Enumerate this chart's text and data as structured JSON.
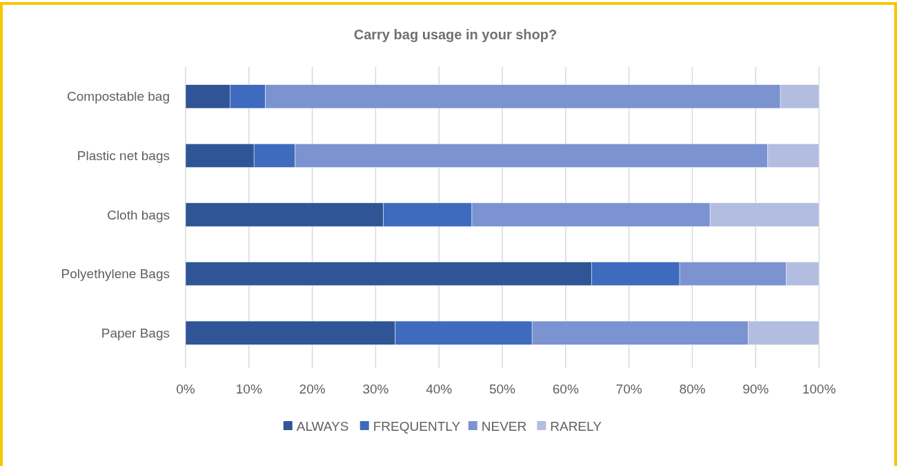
{
  "chart_data": {
    "type": "bar",
    "title": "Carry bag usage in your shop?",
    "orientation": "horizontal",
    "stacked": true,
    "categories": [
      "Compostable bag",
      "Plastic net bags",
      "Cloth bags",
      "Polyethylene Bags",
      "Paper Bags"
    ],
    "series": [
      {
        "name": "ALWAYS",
        "color": "#2f5597",
        "values": [
          7.0,
          10.8,
          31.2,
          64.1,
          33.1
        ]
      },
      {
        "name": "FREQUENTLY",
        "color": "#3e6bbd",
        "values": [
          5.6,
          6.5,
          14.0,
          13.9,
          21.6
        ]
      },
      {
        "name": "NEVER",
        "color": "#7b93d0",
        "values": [
          81.3,
          74.6,
          37.6,
          16.8,
          34.1
        ]
      },
      {
        "name": "RARELY",
        "color": "#b2bde0",
        "values": [
          6.1,
          8.1,
          17.2,
          5.2,
          11.2
        ]
      }
    ],
    "xlim": [
      0,
      100
    ],
    "xticks": [
      {
        "value": 0,
        "label": "0%"
      },
      {
        "value": 10,
        "label": "10%"
      },
      {
        "value": 20,
        "label": "20%"
      },
      {
        "value": 30,
        "label": "30%"
      },
      {
        "value": 40,
        "label": "40%"
      },
      {
        "value": 50,
        "label": "50%"
      },
      {
        "value": 60,
        "label": "60%"
      },
      {
        "value": 70,
        "label": "70%"
      },
      {
        "value": 80,
        "label": "80%"
      },
      {
        "value": 90,
        "label": "90%"
      },
      {
        "value": 100,
        "label": "100%"
      }
    ],
    "grid": "x",
    "legend": "bottom"
  }
}
